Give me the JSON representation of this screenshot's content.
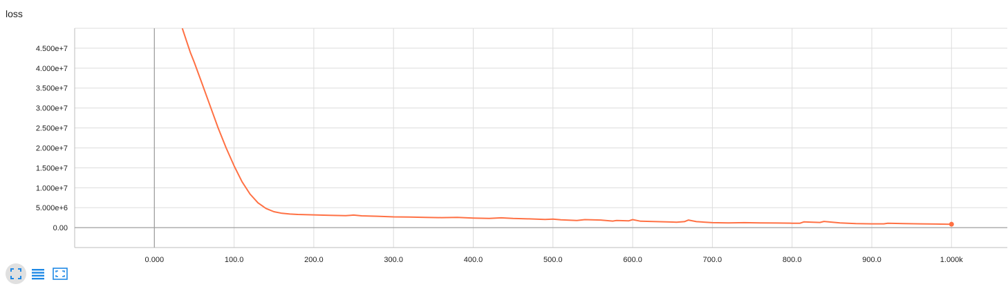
{
  "card": {
    "title": "loss"
  },
  "chart_data": {
    "type": "line",
    "title": "loss",
    "xlabel": "",
    "ylabel": "",
    "xlim": [
      -100,
      1070
    ],
    "ylim": [
      -5000000,
      50000000
    ],
    "grid": true,
    "x_ticks": [
      0,
      100,
      200,
      300,
      400,
      500,
      600,
      700,
      800,
      900,
      1000
    ],
    "x_tick_labels": [
      "0.000",
      "100.0",
      "200.0",
      "300.0",
      "400.0",
      "500.0",
      "600.0",
      "700.0",
      "800.0",
      "900.0",
      "1.000k"
    ],
    "y_ticks": [
      0,
      5000000,
      10000000,
      15000000,
      20000000,
      25000000,
      30000000,
      35000000,
      40000000,
      45000000
    ],
    "y_tick_labels": [
      "0.00",
      "5.000e+6",
      "1.000e+7",
      "1.500e+7",
      "2.000e+7",
      "2.500e+7",
      "3.000e+7",
      "3.500e+7",
      "4.000e+7",
      "4.500e+7"
    ],
    "series": [
      {
        "color": "#ff7043",
        "x": [
          35,
          40,
          45,
          50,
          60,
          70,
          80,
          90,
          100,
          110,
          120,
          130,
          140,
          150,
          160,
          170,
          180,
          200,
          220,
          240,
          250,
          260,
          280,
          300,
          320,
          340,
          360,
          380,
          400,
          420,
          435,
          450,
          470,
          490,
          500,
          510,
          530,
          540,
          560,
          575,
          580,
          595,
          600,
          610,
          630,
          650,
          655,
          665,
          670,
          680,
          700,
          720,
          740,
          760,
          780,
          800,
          810,
          815,
          820,
          835,
          840,
          860,
          880,
          900,
          915,
          920,
          940,
          960,
          980,
          1000
        ],
        "y": [
          50000000,
          47000000,
          44000000,
          41500000,
          36000000,
          30500000,
          25000000,
          20000000,
          15500000,
          11500000,
          8400000,
          6200000,
          4800000,
          4000000,
          3600000,
          3400000,
          3300000,
          3200000,
          3100000,
          3000000,
          3150000,
          2950000,
          2850000,
          2700000,
          2650000,
          2550000,
          2500000,
          2550000,
          2400000,
          2300000,
          2450000,
          2300000,
          2200000,
          2050000,
          2150000,
          1950000,
          1800000,
          2000000,
          1900000,
          1650000,
          1800000,
          1700000,
          2000000,
          1600000,
          1500000,
          1400000,
          1350000,
          1500000,
          1900000,
          1500000,
          1250000,
          1200000,
          1250000,
          1200000,
          1150000,
          1100000,
          1100000,
          1450000,
          1400000,
          1300000,
          1550000,
          1200000,
          1000000,
          950000,
          950000,
          1100000,
          1000000,
          950000,
          900000,
          850000
        ]
      }
    ]
  },
  "toolbar": {
    "buttons": [
      {
        "icon": "fit-domain-icon",
        "active": true
      },
      {
        "icon": "data-table-icon",
        "active": false
      },
      {
        "icon": "expand-icon",
        "active": false
      }
    ]
  }
}
